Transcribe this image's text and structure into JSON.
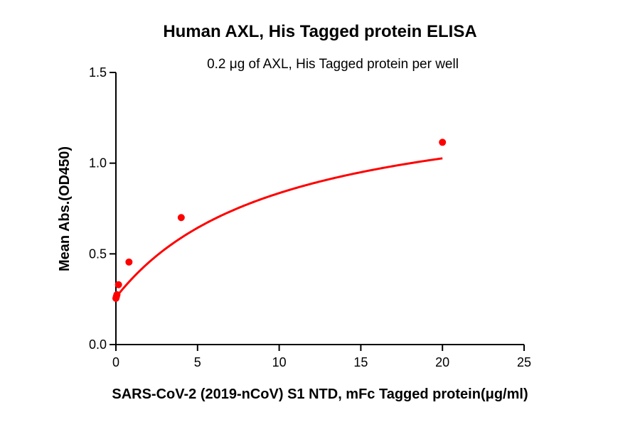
{
  "chart_data": {
    "type": "scatter",
    "title": "Human AXL, His Tagged protein ELISA",
    "subtitle": "0.2 μg of AXL, His Tagged protein per well",
    "xlabel": "SARS-CoV-2 (2019-nCoV) S1 NTD, mFc Tagged protein(μg/ml)",
    "ylabel": "Mean Abs.(OD450)",
    "xlim": [
      0,
      25
    ],
    "ylim": [
      0,
      1.5
    ],
    "xticks": [
      "0",
      "5",
      "10",
      "15",
      "20",
      "25"
    ],
    "yticks": [
      "0.0",
      "0.5",
      "1.0",
      "1.5"
    ],
    "xtick_values": [
      0,
      5,
      10,
      15,
      20,
      25
    ],
    "ytick_values": [
      0,
      0.5,
      1.0,
      1.5
    ],
    "grid": false,
    "series_color": "#ff0000",
    "series": [
      {
        "points": [
          {
            "x": 0.0,
            "y": 0.255
          },
          {
            "x": 0.031,
            "y": 0.265
          },
          {
            "x": 0.063,
            "y": 0.275
          },
          {
            "x": 0.16,
            "y": 0.33
          },
          {
            "x": 0.8,
            "y": 0.455
          },
          {
            "x": 4.0,
            "y": 0.7
          },
          {
            "x": 20.0,
            "y": 1.115
          }
        ],
        "fit": {
          "model": "bmax_plus_bottom",
          "bottom": 0.26,
          "bmax": 1.15,
          "kd": 10.0
        }
      }
    ]
  }
}
